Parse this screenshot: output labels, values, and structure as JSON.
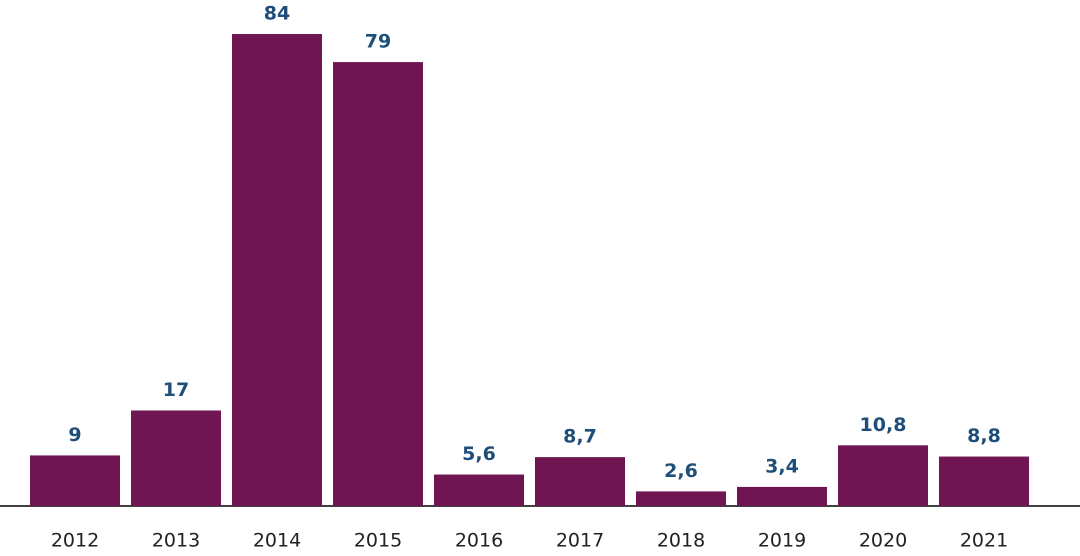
{
  "chart_data": {
    "type": "bar",
    "categories": [
      "2012",
      "2013",
      "2014",
      "2015",
      "2016",
      "2017",
      "2018",
      "2019",
      "2020",
      "2021"
    ],
    "values": [
      9,
      17,
      84,
      79,
      5.6,
      8.7,
      2.6,
      3.4,
      10.8,
      8.8
    ],
    "value_labels": [
      "9",
      "17",
      "84",
      "79",
      "5,6",
      "8,7",
      "2,6",
      "3,4",
      "10,8",
      "8,8"
    ],
    "color": "#6f1551",
    "label_color": "#1f4e79",
    "ylim": [
      0,
      84
    ]
  }
}
